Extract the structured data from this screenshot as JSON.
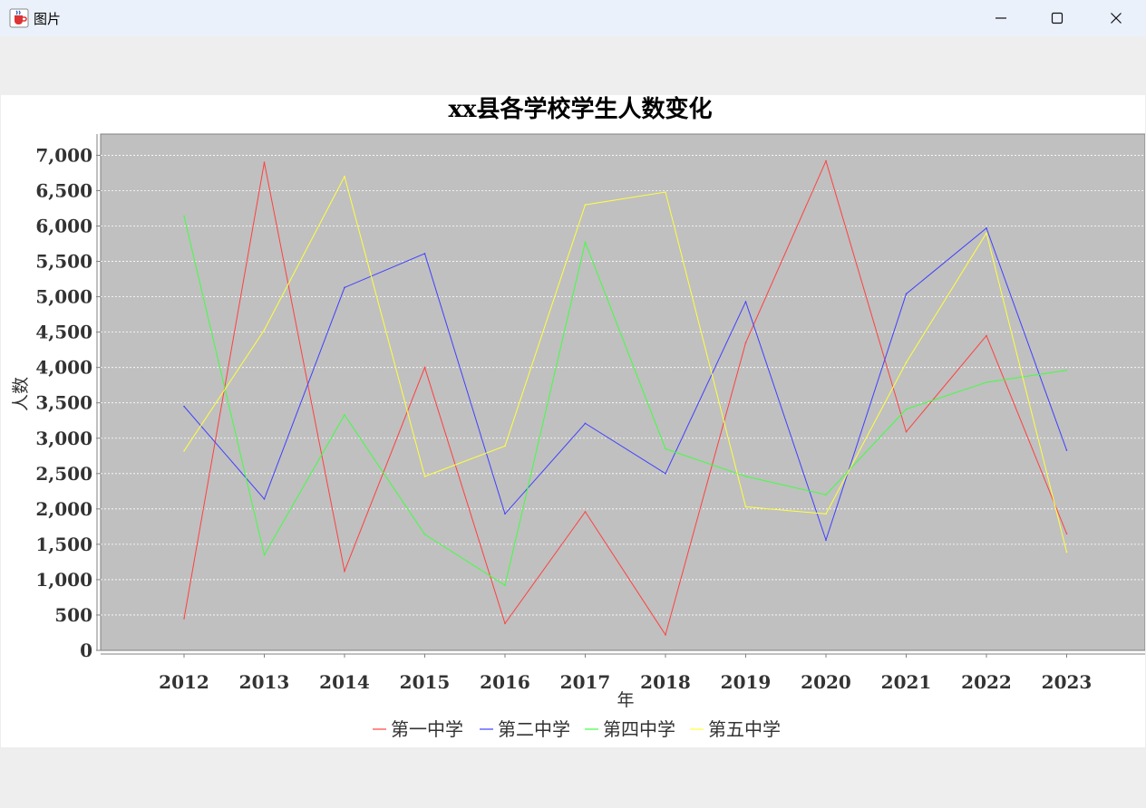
{
  "window": {
    "title": "图片",
    "app_icon": "java-coffee-icon",
    "controls": {
      "minimize_icon": "minimize-icon",
      "maximize_icon": "maximize-icon",
      "close_icon": "close-icon"
    }
  },
  "colors": {
    "plot_background": "#c0c0c0",
    "gridline": "#ffffff",
    "series": [
      "#ff4040",
      "#4040ff",
      "#40ff40",
      "#ffff40"
    ]
  },
  "chart_data": {
    "type": "line",
    "title": "xx县各学校学生人数变化",
    "xlabel": "年",
    "ylabel": "人数",
    "categories": [
      "2012",
      "2013",
      "2014",
      "2015",
      "2016",
      "2017",
      "2018",
      "2019",
      "2020",
      "2021",
      "2022",
      "2023"
    ],
    "ylim": [
      0,
      7300
    ],
    "yticks": [
      0,
      500,
      1000,
      1500,
      2000,
      2500,
      3000,
      3500,
      4000,
      4500,
      5000,
      5500,
      6000,
      6500,
      7000
    ],
    "ytick_labels": [
      "0",
      "500",
      "1,000",
      "1,500",
      "2,000",
      "2,500",
      "3,000",
      "3,500",
      "4,000",
      "4,500",
      "5,000",
      "5,500",
      "6,000",
      "6,500",
      "7,000"
    ],
    "grid": true,
    "legend_position": "bottom",
    "series": [
      {
        "name": "第一中学",
        "values": [
          450,
          6900,
          1120,
          4000,
          380,
          1960,
          220,
          4350,
          6920,
          3090,
          4450,
          1650
        ]
      },
      {
        "name": "第二中学",
        "values": [
          3450,
          2140,
          5130,
          5610,
          1930,
          3210,
          2500,
          4930,
          1560,
          5040,
          5970,
          2830
        ]
      },
      {
        "name": "第四中学",
        "values": [
          6140,
          1350,
          3330,
          1640,
          920,
          5770,
          2850,
          2460,
          2200,
          3410,
          3790,
          3960
        ]
      },
      {
        "name": "第五中学",
        "values": [
          2820,
          4530,
          6700,
          2460,
          2890,
          6300,
          6480,
          2030,
          1930,
          4070,
          5900,
          1390
        ]
      }
    ]
  }
}
